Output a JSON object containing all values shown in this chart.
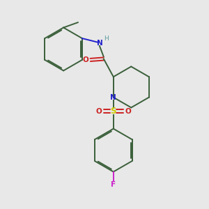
{
  "background_color": "#e8e8e8",
  "bond_color": "#3a5f3a",
  "N_color": "#2222cc",
  "O_color": "#cc2222",
  "S_color": "#cccc00",
  "F_color": "#cc22cc",
  "H_color": "#5a9a9a",
  "figsize": [
    3.0,
    3.0
  ],
  "dpi": 100,
  "xlim": [
    0,
    10
  ],
  "ylim": [
    0,
    10
  ]
}
